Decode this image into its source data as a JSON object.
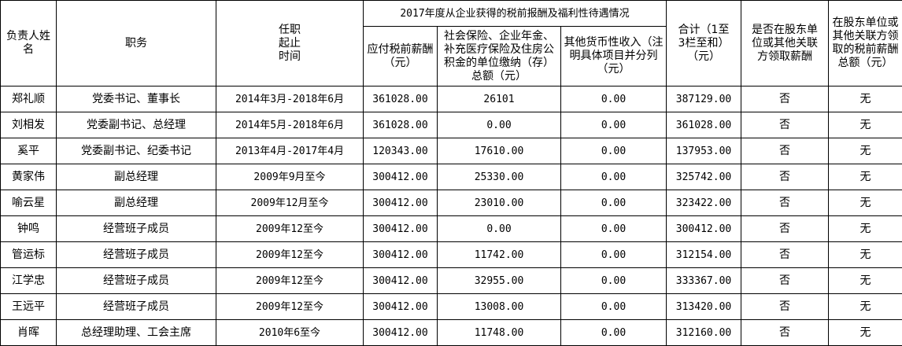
{
  "headers": {
    "name": "负责人姓名",
    "position": "职务",
    "term": "任职起止时间",
    "group": "2017年度从企业获得的税前报酬及福利性待遇情况",
    "salary": "应付税前薪酬（元）",
    "insurance": "社会保险、企业年金、补充医疗保险及住房公积金的单位缴纳（存）总额（元）",
    "other": "其他货币性收入（注明具体项目并分列（元）",
    "total": "合计（1至3栏至和）（元）",
    "shareholder": "是否在股东单位或其他关联方领取薪酬",
    "shareholder_amount": "在股东单位或其他关联方领取的税前薪酬总额（元）"
  },
  "rows": [
    {
      "name": "郑礼顺",
      "position": "党委书记、董事长",
      "term": "2014年3月-2018年6月",
      "salary": "361028.00",
      "insurance": "26101",
      "other": "0.00",
      "total": "387129.00",
      "shareholder": "否",
      "amount": "无"
    },
    {
      "name": "刘相发",
      "position": "党委副书记、总经理",
      "term": "2014年5月-2018年6月",
      "salary": "361028.00",
      "insurance": "0.00",
      "other": "0.00",
      "total": "361028.00",
      "shareholder": "否",
      "amount": "无"
    },
    {
      "name": "奚平",
      "position": "党委副书记、纪委书记",
      "term": "2013年4月-2017年4月",
      "salary": "120343.00",
      "insurance": "17610.00",
      "other": "0.00",
      "total": "137953.00",
      "shareholder": "否",
      "amount": "无"
    },
    {
      "name": "黄家伟",
      "position": "副总经理",
      "term": "2009年9月至今",
      "salary": "300412.00",
      "insurance": "25330.00",
      "other": "0.00",
      "total": "325742.00",
      "shareholder": "否",
      "amount": "无"
    },
    {
      "name": "喻云星",
      "position": "副总经理",
      "term": "2009年12月至今",
      "salary": "300412.00",
      "insurance": "23010.00",
      "other": "0.00",
      "total": "323422.00",
      "shareholder": "否",
      "amount": "无"
    },
    {
      "name": "钟鸣",
      "position": "经营班子成员",
      "term": "2009年12至今",
      "salary": "300412.00",
      "insurance": "0.00",
      "other": "0.00",
      "total": "300412.00",
      "shareholder": "否",
      "amount": "无"
    },
    {
      "name": "管运标",
      "position": "经营班子成员",
      "term": "2009年12至今",
      "salary": "300412.00",
      "insurance": "11742.00",
      "other": "0.00",
      "total": "312154.00",
      "shareholder": "否",
      "amount": "无"
    },
    {
      "name": "江学忠",
      "position": "经营班子成员",
      "term": "2009年12至今",
      "salary": "300412.00",
      "insurance": "32955.00",
      "other": "0.00",
      "total": "333367.00",
      "shareholder": "否",
      "amount": "无"
    },
    {
      "name": "王远平",
      "position": "经营班子成员",
      "term": "2009年12至今",
      "salary": "300412.00",
      "insurance": "13008.00",
      "other": "0.00",
      "total": "313420.00",
      "shareholder": "否",
      "amount": "无"
    },
    {
      "name": "肖晖",
      "position": "总经理助理、工会主席",
      "term": "2010年6至今",
      "salary": "300412.00",
      "insurance": "11748.00",
      "other": "0.00",
      "total": "312160.00",
      "shareholder": "否",
      "amount": "无"
    }
  ]
}
